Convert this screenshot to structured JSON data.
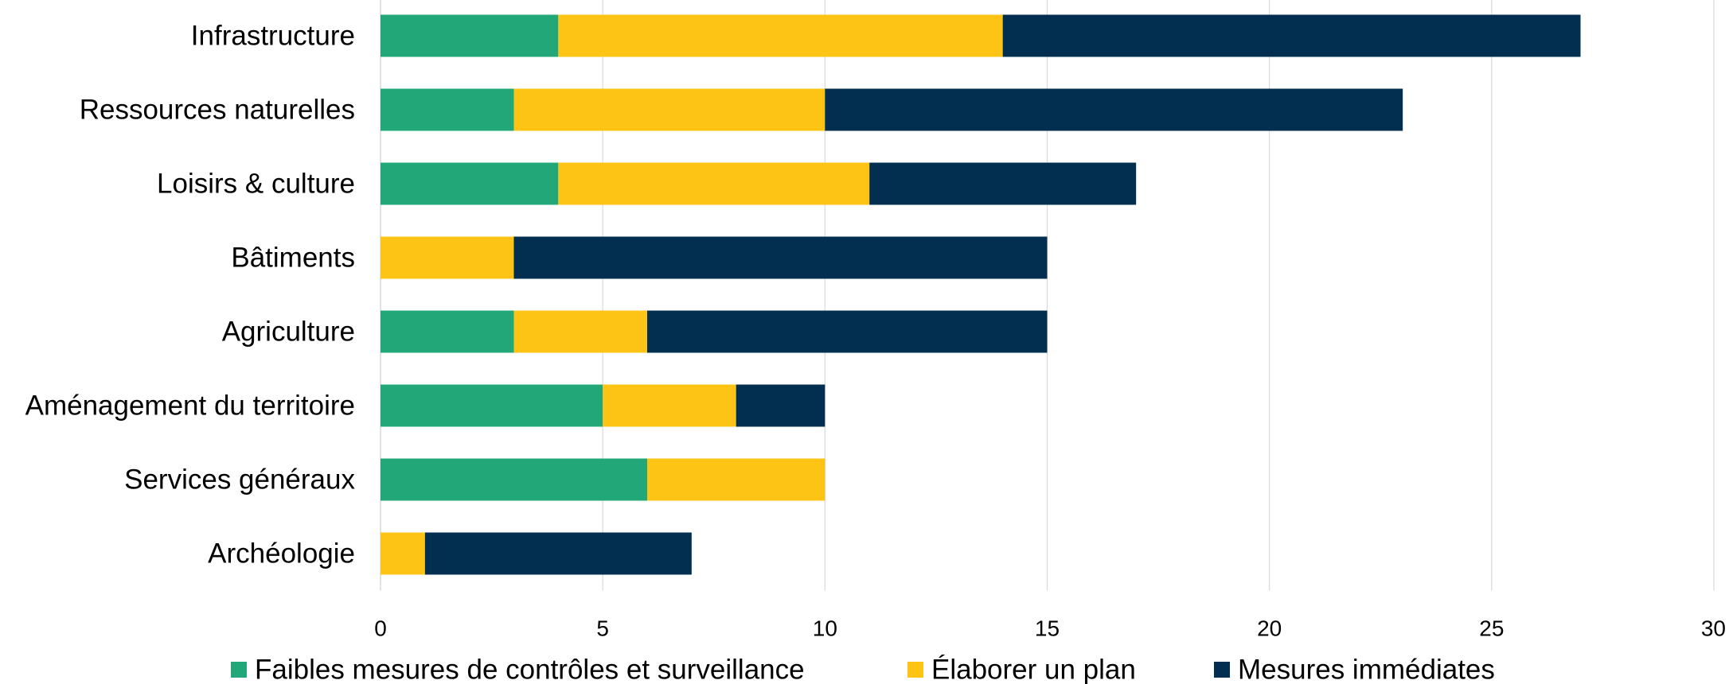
{
  "chart_data": {
    "type": "bar",
    "orientation": "horizontal",
    "stacked": true,
    "categories": [
      "Infrastructure",
      "Ressources naturelles",
      "Loisirs & culture",
      "Bâtiments",
      "Agriculture",
      "Aménagement du territoire",
      "Services généraux",
      "Archéologie"
    ],
    "series": [
      {
        "name": "Faibles mesures de contrôles et surveillance",
        "color": "#22a878",
        "values": [
          4,
          3,
          4,
          0,
          3,
          5,
          6,
          0
        ]
      },
      {
        "name": "Élaborer un plan",
        "color": "#fdc315",
        "values": [
          10,
          7,
          7,
          3,
          3,
          3,
          4,
          1
        ]
      },
      {
        "name": "Mesures immédiates",
        "color": "#022f4f",
        "values": [
          13,
          13,
          6,
          12,
          9,
          2,
          0,
          6
        ]
      }
    ],
    "xlim": [
      0,
      30
    ],
    "xticks": [
      "0",
      "5",
      "10",
      "15",
      "20",
      "25",
      "30"
    ],
    "grid": "vertical",
    "gridColor": "#d9d9d9",
    "legend": "bottom",
    "title": "",
    "xlabel": "",
    "ylabel": ""
  }
}
